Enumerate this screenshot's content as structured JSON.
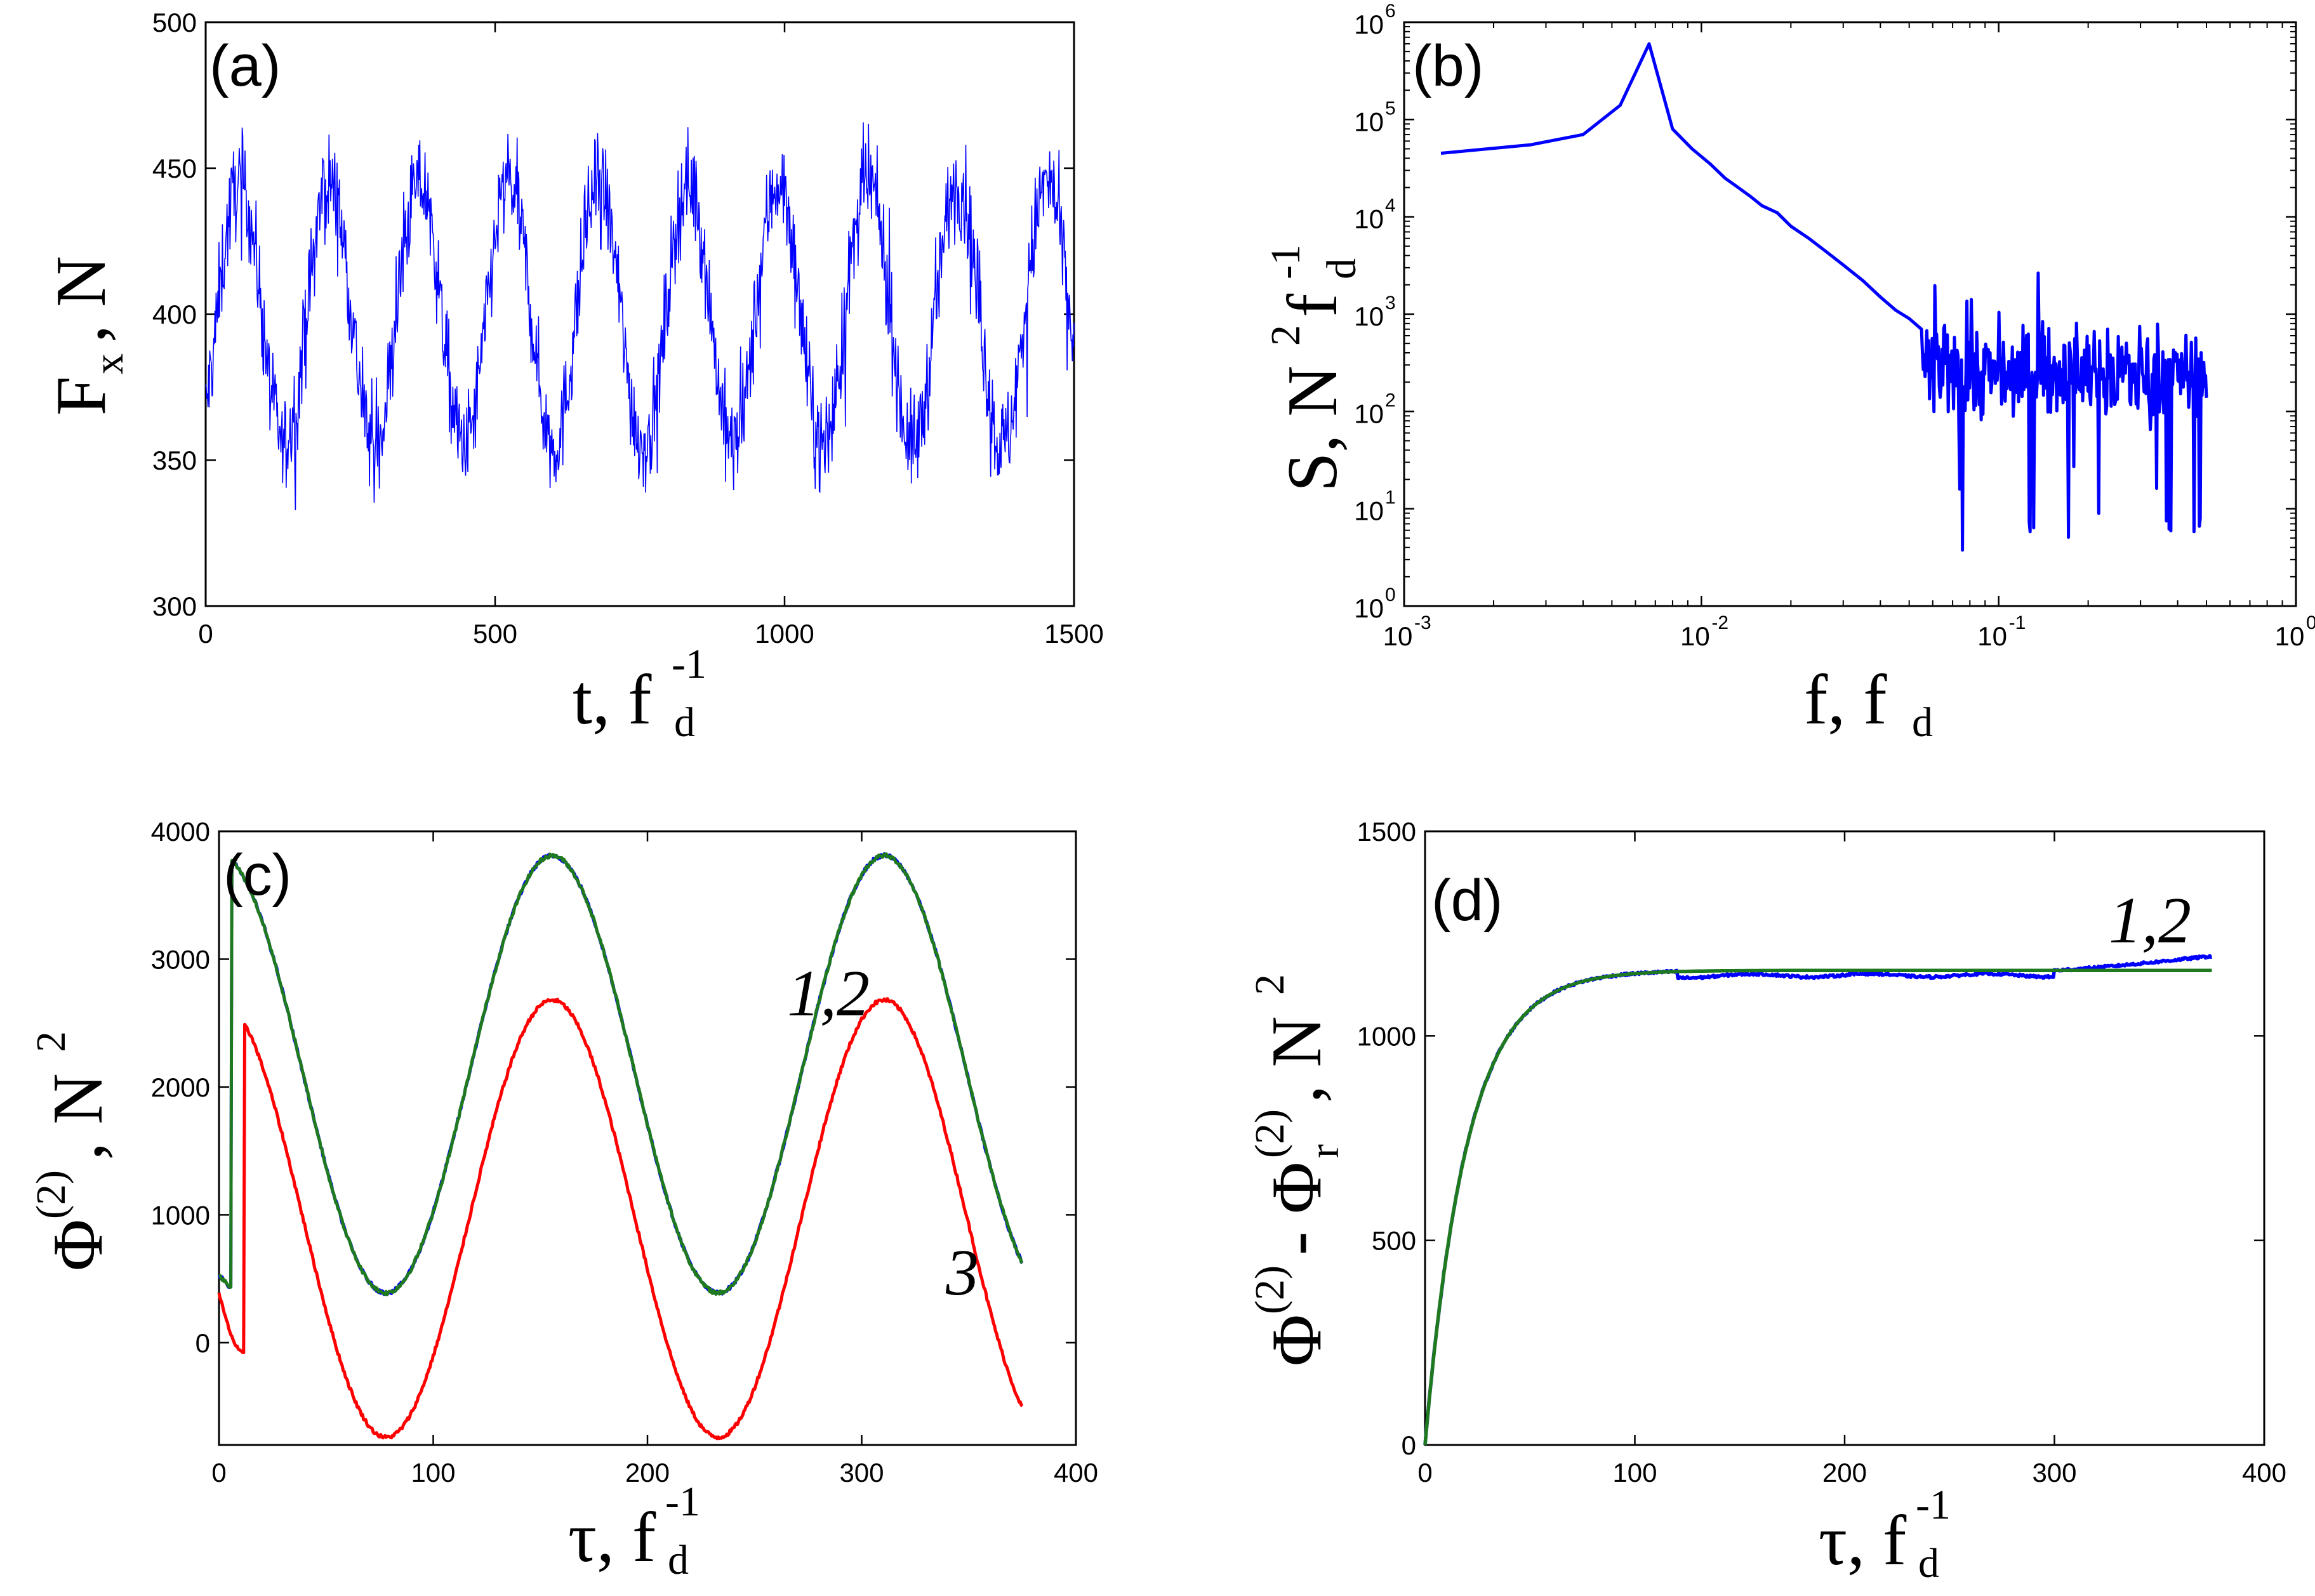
{
  "colors": {
    "blue": "#0000ff",
    "green": "#1f7a1f",
    "red": "#ff0000",
    "axis": "#000000"
  },
  "chart_data": [
    {
      "id": "a",
      "type": "line",
      "panel_label": "(a)",
      "xlabel": "t, f_d^-1",
      "ylabel": "F_x , N",
      "xlim": [
        0,
        1500
      ],
      "ylim": [
        300,
        500
      ],
      "xticks": [
        "0",
        "500",
        "1000",
        "1500"
      ],
      "yticks": [
        "300",
        "350",
        "400",
        "450",
        "500"
      ],
      "model": {
        "mean": 400,
        "amplitude": 45,
        "period": 155,
        "noise": 22
      },
      "series": [
        {
          "name": "F_x",
          "color": "#0000ff"
        }
      ]
    },
    {
      "id": "b",
      "type": "line",
      "scale": "log-log",
      "panel_label": "(b)",
      "xlabel": "f, f_d",
      "ylabel": "S, N^2 f_d^-1",
      "xlim": [
        0.001,
        1
      ],
      "ylim": [
        1,
        1000000
      ],
      "xticks": [
        {
          "base": "10",
          "exp": "-3"
        },
        {
          "base": "10",
          "exp": "-2"
        },
        {
          "base": "10",
          "exp": "-1"
        },
        {
          "base": "10",
          "exp": "0"
        }
      ],
      "yticks": [
        {
          "base": "10",
          "exp": "0"
        },
        {
          "base": "10",
          "exp": "1"
        },
        {
          "base": "10",
          "exp": "2"
        },
        {
          "base": "10",
          "exp": "3"
        },
        {
          "base": "10",
          "exp": "4"
        },
        {
          "base": "10",
          "exp": "5"
        },
        {
          "base": "10",
          "exp": "6"
        }
      ],
      "series": [
        {
          "name": "S",
          "color": "#0000ff",
          "x": [
            0.00133,
            0.00267,
            0.004,
            0.00533,
            0.00667,
            0.008,
            0.0093,
            0.0107,
            0.012,
            0.0133,
            0.0147,
            0.016,
            0.018,
            0.02,
            0.023,
            0.026,
            0.03,
            0.035,
            0.04,
            0.045,
            0.05,
            0.055
          ],
          "values": [
            45000,
            55000,
            70000,
            140000,
            600000,
            80000,
            50000,
            35000,
            25000,
            20000,
            16000,
            13000,
            11000,
            8000,
            6000,
            4500,
            3200,
            2200,
            1500,
            1100,
            900,
            700
          ],
          "noise_floor": {
            "from": 0.055,
            "to": 0.5,
            "center": 250
          }
        }
      ]
    },
    {
      "id": "c",
      "type": "line",
      "panel_label": "(c)",
      "xlabel": "τ, f_d^-1",
      "ylabel": "Φ^(2) , N^2",
      "xlim": [
        0,
        400
      ],
      "ylim": [
        -800,
        4000
      ],
      "xticks": [
        "0",
        "100",
        "200",
        "300",
        "400"
      ],
      "yticks": [
        "0",
        "1000",
        "2000",
        "3000",
        "4000"
      ],
      "annotations": [
        "1,2",
        "3"
      ],
      "model": {
        "period": 155,
        "tau_max": 375
      },
      "series": [
        {
          "name": "1",
          "color": "#0000ff",
          "mean": 2100,
          "amplitude": 1710,
          "rise": 0
        },
        {
          "name": "2",
          "color": "#1f7a1f",
          "mean": 2100,
          "amplitude": 1710,
          "rise": 0
        },
        {
          "name": "3",
          "color": "#ff0000",
          "mean": 970,
          "amplitude": 1710,
          "rise": -1160
        }
      ]
    },
    {
      "id": "d",
      "type": "line",
      "panel_label": "(d)",
      "xlabel": "τ, f_d^-1",
      "ylabel": "Φ^(2) - Φ_r^(2) , N^2",
      "xlim": [
        0,
        400
      ],
      "ylim": [
        0,
        1500
      ],
      "xticks": [
        "0",
        "100",
        "200",
        "300",
        "400"
      ],
      "yticks": [
        "0",
        "500",
        "1000",
        "1500"
      ],
      "annotations": [
        "1,2"
      ],
      "model": {
        "plateau": 1160,
        "time_constant": 20,
        "tau_max": 375
      },
      "series": [
        {
          "name": "1",
          "color": "#0000ff",
          "tail_rise": 35
        },
        {
          "name": "2",
          "color": "#1f7a1f",
          "tail_rise": 0
        }
      ]
    }
  ]
}
